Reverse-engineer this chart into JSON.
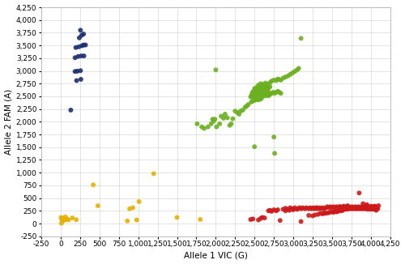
{
  "title": "",
  "xlabel": "Allele 1 VIC (G)",
  "ylabel": "Allele 2 FAM (A)",
  "xlim": [
    -250,
    4250
  ],
  "ylim": [
    -250,
    4250
  ],
  "xticks": [
    -250,
    0,
    250,
    500,
    750,
    1000,
    1250,
    1500,
    1750,
    2000,
    2250,
    2500,
    2750,
    3000,
    3250,
    3500,
    3750,
    4000,
    4250
  ],
  "yticks": [
    -250,
    0,
    250,
    500,
    750,
    1000,
    1250,
    1500,
    1750,
    2000,
    2250,
    2500,
    2750,
    3000,
    3250,
    3500,
    3750,
    4000,
    4250
  ],
  "background_color": "#ffffff",
  "grid_color": "#d0d0d0",
  "color_AA": "#1a2e6e",
  "color_GA": "#6ab020",
  "color_GG": "#cc1a1a",
  "color_undet": "#e8b000",
  "marker_size": 18,
  "marker_alpha": 0.9,
  "font_size_label": 7.5,
  "font_size_tick": 6.5,
  "AA_points": [
    [
      130,
      2230
    ],
    [
      205,
      2810
    ],
    [
      260,
      2835
    ],
    [
      185,
      2990
    ],
    [
      215,
      2995
    ],
    [
      255,
      3005
    ],
    [
      185,
      3260
    ],
    [
      225,
      3285
    ],
    [
      265,
      3295
    ],
    [
      300,
      3295
    ],
    [
      195,
      3460
    ],
    [
      235,
      3475
    ],
    [
      275,
      3495
    ],
    [
      295,
      3510
    ],
    [
      320,
      3510
    ],
    [
      240,
      3650
    ],
    [
      270,
      3700
    ],
    [
      295,
      3725
    ],
    [
      255,
      3800
    ]
  ],
  "GA_points": [
    [
      1760,
      1960
    ],
    [
      1820,
      1900
    ],
    [
      1850,
      1870
    ],
    [
      1900,
      1900
    ],
    [
      1940,
      1960
    ],
    [
      1970,
      2010
    ],
    [
      1960,
      2050
    ],
    [
      1990,
      2050
    ],
    [
      2010,
      1900
    ],
    [
      2050,
      1960
    ],
    [
      2070,
      2110
    ],
    [
      2100,
      2070
    ],
    [
      2120,
      2150
    ],
    [
      2150,
      2080
    ],
    [
      2180,
      1930
    ],
    [
      2200,
      1960
    ],
    [
      2220,
      2060
    ],
    [
      2000,
      3020
    ],
    [
      2250,
      2210
    ],
    [
      2280,
      2180
    ],
    [
      2300,
      2150
    ],
    [
      2320,
      2210
    ],
    [
      2350,
      2230
    ],
    [
      2380,
      2290
    ],
    [
      2400,
      2310
    ],
    [
      2420,
      2340
    ],
    [
      2460,
      2390
    ],
    [
      2480,
      2410
    ],
    [
      2500,
      2420
    ],
    [
      2520,
      2450
    ],
    [
      2530,
      2460
    ],
    [
      2540,
      2430
    ],
    [
      2550,
      2470
    ],
    [
      2560,
      2450
    ],
    [
      2570,
      2440
    ],
    [
      2580,
      2480
    ],
    [
      2590,
      2460
    ],
    [
      2480,
      2500
    ],
    [
      2500,
      2520
    ],
    [
      2510,
      2510
    ],
    [
      2520,
      2540
    ],
    [
      2530,
      2530
    ],
    [
      2540,
      2510
    ],
    [
      2550,
      2550
    ],
    [
      2560,
      2530
    ],
    [
      2570,
      2560
    ],
    [
      2580,
      2540
    ],
    [
      2590,
      2580
    ],
    [
      2600,
      2550
    ],
    [
      2610,
      2560
    ],
    [
      2620,
      2540
    ],
    [
      2630,
      2570
    ],
    [
      2640,
      2550
    ],
    [
      2650,
      2580
    ],
    [
      2660,
      2560
    ],
    [
      2670,
      2590
    ],
    [
      2680,
      2570
    ],
    [
      2690,
      2540
    ],
    [
      2470,
      2560
    ],
    [
      2480,
      2590
    ],
    [
      2490,
      2570
    ],
    [
      2500,
      2600
    ],
    [
      2510,
      2580
    ],
    [
      2520,
      2610
    ],
    [
      2530,
      2590
    ],
    [
      2540,
      2570
    ],
    [
      2550,
      2600
    ],
    [
      2560,
      2580
    ],
    [
      2570,
      2610
    ],
    [
      2580,
      2590
    ],
    [
      2590,
      2620
    ],
    [
      2600,
      2600
    ],
    [
      2610,
      2630
    ],
    [
      2620,
      2610
    ],
    [
      2630,
      2590
    ],
    [
      2640,
      2620
    ],
    [
      2650,
      2600
    ],
    [
      2660,
      2630
    ],
    [
      2670,
      2610
    ],
    [
      2500,
      2650
    ],
    [
      2520,
      2670
    ],
    [
      2540,
      2660
    ],
    [
      2560,
      2680
    ],
    [
      2580,
      2660
    ],
    [
      2600,
      2690
    ],
    [
      2620,
      2670
    ],
    [
      2640,
      2700
    ],
    [
      2660,
      2680
    ],
    [
      2680,
      2660
    ],
    [
      2700,
      2690
    ],
    [
      2550,
      2720
    ],
    [
      2580,
      2750
    ],
    [
      2610,
      2730
    ],
    [
      2640,
      2760
    ],
    [
      2670,
      2740
    ],
    [
      2700,
      2770
    ],
    [
      2720,
      2800
    ],
    [
      2750,
      2820
    ],
    [
      2780,
      2810
    ],
    [
      2800,
      2840
    ],
    [
      2820,
      2830
    ],
    [
      2840,
      2820
    ],
    [
      2870,
      2860
    ],
    [
      2900,
      2880
    ],
    [
      2930,
      2900
    ],
    [
      2960,
      2930
    ],
    [
      2990,
      2960
    ],
    [
      3020,
      2990
    ],
    [
      3050,
      3020
    ],
    [
      3070,
      3050
    ],
    [
      2750,
      1700
    ],
    [
      2760,
      1380
    ],
    [
      2500,
      1510
    ],
    [
      3100,
      3640
    ],
    [
      2700,
      2540
    ],
    [
      2720,
      2560
    ],
    [
      2740,
      2580
    ],
    [
      2760,
      2560
    ],
    [
      2780,
      2580
    ],
    [
      2800,
      2600
    ],
    [
      2820,
      2580
    ],
    [
      2840,
      2560
    ],
    [
      2600,
      2500
    ],
    [
      2620,
      2520
    ],
    [
      2640,
      2510
    ],
    [
      2660,
      2530
    ],
    [
      2680,
      2510
    ],
    [
      2450,
      2490
    ],
    [
      2460,
      2510
    ],
    [
      2470,
      2530
    ],
    [
      2550,
      2480
    ],
    [
      2570,
      2500
    ]
  ],
  "GG_points": [
    [
      2450,
      80
    ],
    [
      2480,
      90
    ],
    [
      2550,
      70
    ],
    [
      2580,
      100
    ],
    [
      2600,
      120
    ],
    [
      2630,
      110
    ],
    [
      2680,
      250
    ],
    [
      2700,
      260
    ],
    [
      2720,
      240
    ],
    [
      2750,
      270
    ],
    [
      2780,
      250
    ],
    [
      2800,
      270
    ],
    [
      2830,
      60
    ],
    [
      2870,
      280
    ],
    [
      2900,
      300
    ],
    [
      2930,
      280
    ],
    [
      2960,
      310
    ],
    [
      2990,
      290
    ],
    [
      3020,
      310
    ],
    [
      3050,
      290
    ],
    [
      3080,
      310
    ],
    [
      3100,
      290
    ],
    [
      3120,
      310
    ],
    [
      3150,
      290
    ],
    [
      3170,
      310
    ],
    [
      3200,
      290
    ],
    [
      3220,
      310
    ],
    [
      3240,
      290
    ],
    [
      3260,
      310
    ],
    [
      3280,
      290
    ],
    [
      3300,
      310
    ],
    [
      3200,
      160
    ],
    [
      3250,
      150
    ],
    [
      3280,
      170
    ],
    [
      3320,
      180
    ],
    [
      3350,
      200
    ],
    [
      3380,
      190
    ],
    [
      3400,
      210
    ],
    [
      3420,
      200
    ],
    [
      3450,
      210
    ],
    [
      3470,
      220
    ],
    [
      3500,
      230
    ],
    [
      3520,
      220
    ],
    [
      3540,
      240
    ],
    [
      3560,
      230
    ],
    [
      3580,
      240
    ],
    [
      3600,
      260
    ],
    [
      3620,
      250
    ],
    [
      3640,
      260
    ],
    [
      3650,
      280
    ],
    [
      3670,
      290
    ],
    [
      3690,
      280
    ],
    [
      3700,
      290
    ],
    [
      3710,
      300
    ],
    [
      3720,
      290
    ],
    [
      3730,
      310
    ],
    [
      3740,
      300
    ],
    [
      3750,
      290
    ],
    [
      3760,
      310
    ],
    [
      3770,
      300
    ],
    [
      3780,
      290
    ],
    [
      3790,
      310
    ],
    [
      3800,
      300
    ],
    [
      3810,
      290
    ],
    [
      3820,
      310
    ],
    [
      3830,
      300
    ],
    [
      3840,
      290
    ],
    [
      3850,
      310
    ],
    [
      3860,
      300
    ],
    [
      3870,
      290
    ],
    [
      3880,
      310
    ],
    [
      3890,
      300
    ],
    [
      3900,
      290
    ],
    [
      3910,
      310
    ],
    [
      3920,
      300
    ],
    [
      3930,
      290
    ],
    [
      3940,
      320
    ],
    [
      3950,
      300
    ],
    [
      3960,
      280
    ],
    [
      3970,
      310
    ],
    [
      3980,
      300
    ],
    [
      3990,
      280
    ],
    [
      4000,
      310
    ],
    [
      4010,
      300
    ],
    [
      4020,
      280
    ],
    [
      4030,
      320
    ],
    [
      4040,
      300
    ],
    [
      4050,
      280
    ],
    [
      4060,
      340
    ],
    [
      4070,
      260
    ],
    [
      4080,
      310
    ],
    [
      4090,
      290
    ],
    [
      4100,
      350
    ],
    [
      3300,
      310
    ],
    [
      3320,
      290
    ],
    [
      3340,
      310
    ],
    [
      3360,
      290
    ],
    [
      3380,
      310
    ],
    [
      3400,
      290
    ],
    [
      3420,
      310
    ],
    [
      3440,
      330
    ],
    [
      3460,
      310
    ],
    [
      3480,
      330
    ],
    [
      3500,
      310
    ],
    [
      3520,
      330
    ],
    [
      3540,
      310
    ],
    [
      3560,
      330
    ],
    [
      3580,
      310
    ],
    [
      3600,
      330
    ],
    [
      3620,
      310
    ],
    [
      3640,
      330
    ],
    [
      3660,
      310
    ],
    [
      3680,
      330
    ],
    [
      3700,
      310
    ],
    [
      3720,
      330
    ],
    [
      3740,
      310
    ],
    [
      3760,
      330
    ],
    [
      3780,
      310
    ],
    [
      3800,
      330
    ],
    [
      3820,
      310
    ],
    [
      3840,
      330
    ],
    [
      3860,
      310
    ],
    [
      3880,
      330
    ],
    [
      3900,
      310
    ],
    [
      3920,
      330
    ],
    [
      3940,
      350
    ],
    [
      3960,
      330
    ],
    [
      3980,
      320
    ],
    [
      4000,
      340
    ],
    [
      4020,
      320
    ],
    [
      4040,
      340
    ],
    [
      3850,
      600
    ],
    [
      3900,
      390
    ],
    [
      3950,
      370
    ],
    [
      3600,
      330
    ],
    [
      3650,
      340
    ],
    [
      3700,
      350
    ],
    [
      2900,
      250
    ],
    [
      2950,
      260
    ],
    [
      3000,
      270
    ],
    [
      3050,
      280
    ],
    [
      3100,
      40
    ]
  ],
  "undet_points": [
    [
      5,
      120
    ],
    [
      15,
      80
    ],
    [
      20,
      50
    ],
    [
      30,
      100
    ],
    [
      50,
      65
    ],
    [
      60,
      130
    ],
    [
      80,
      90
    ],
    [
      100,
      70
    ],
    [
      150,
      110
    ],
    [
      200,
      75
    ],
    [
      10,
      5
    ],
    [
      420,
      760
    ],
    [
      480,
      350
    ],
    [
      860,
      50
    ],
    [
      890,
      290
    ],
    [
      930,
      310
    ],
    [
      980,
      70
    ],
    [
      1010,
      430
    ],
    [
      1200,
      980
    ],
    [
      1500,
      120
    ],
    [
      1800,
      80
    ]
  ]
}
